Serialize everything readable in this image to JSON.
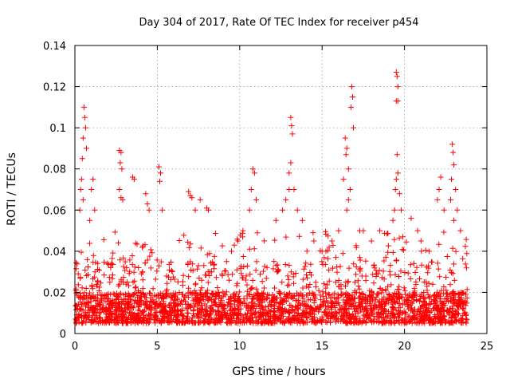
{
  "chart_data": {
    "type": "scatter",
    "title": "Day 304 of 2017, Rate Of TEC Index for receiver p454",
    "xlabel": "GPS time / hours",
    "ylabel": "ROTI / TECUs",
    "xlim": [
      0,
      25
    ],
    "ylim": [
      0,
      0.14
    ],
    "x_ticks": [
      0,
      5,
      10,
      15,
      20,
      25
    ],
    "x_tick_labels": [
      "0",
      "5",
      "10",
      "15",
      "20",
      "25"
    ],
    "y_ticks": [
      0,
      0.02,
      0.04,
      0.06,
      0.08,
      0.1,
      0.12,
      0.14
    ],
    "y_tick_labels": [
      "0",
      "0.02",
      "0.04",
      "0.06",
      "0.08",
      "0.1",
      "0.12",
      "0.14"
    ],
    "grid": true,
    "marker": "+",
    "marker_color": "#ff0000",
    "x_data_range": [
      0,
      23.8
    ],
    "typical_range": [
      0.005,
      0.02
    ],
    "series": [
      {
        "name": "p454",
        "points": [
          [
            0.3,
            0.06
          ],
          [
            0.45,
            0.085
          ],
          [
            0.5,
            0.095
          ],
          [
            0.55,
            0.11
          ],
          [
            0.6,
            0.105
          ],
          [
            0.65,
            0.1
          ],
          [
            0.7,
            0.09
          ],
          [
            0.4,
            0.075
          ],
          [
            0.35,
            0.07
          ],
          [
            0.5,
            0.065
          ],
          [
            1.0,
            0.07
          ],
          [
            1.1,
            0.075
          ],
          [
            1.2,
            0.06
          ],
          [
            0.9,
            0.055
          ],
          [
            2.7,
            0.089
          ],
          [
            2.8,
            0.088
          ],
          [
            2.75,
            0.083
          ],
          [
            2.85,
            0.08
          ],
          [
            2.7,
            0.07
          ],
          [
            2.8,
            0.066
          ],
          [
            2.9,
            0.065
          ],
          [
            3.5,
            0.076
          ],
          [
            3.6,
            0.075
          ],
          [
            4.3,
            0.068
          ],
          [
            4.4,
            0.063
          ],
          [
            4.5,
            0.06
          ],
          [
            5.1,
            0.081
          ],
          [
            5.2,
            0.078
          ],
          [
            5.15,
            0.074
          ],
          [
            5.3,
            0.06
          ],
          [
            6.9,
            0.069
          ],
          [
            7.0,
            0.067
          ],
          [
            7.1,
            0.066
          ],
          [
            7.3,
            0.06
          ],
          [
            7.6,
            0.065
          ],
          [
            8.0,
            0.061
          ],
          [
            8.1,
            0.06
          ],
          [
            9.2,
            0.035
          ],
          [
            9.5,
            0.04
          ],
          [
            9.9,
            0.045
          ],
          [
            10.2,
            0.05
          ],
          [
            10.8,
            0.08
          ],
          [
            10.9,
            0.078
          ],
          [
            10.7,
            0.07
          ],
          [
            11.0,
            0.065
          ],
          [
            10.6,
            0.06
          ],
          [
            12.2,
            0.055
          ],
          [
            12.6,
            0.06
          ],
          [
            12.8,
            0.065
          ],
          [
            13.0,
            0.07
          ],
          [
            13.1,
            0.105
          ],
          [
            13.15,
            0.101
          ],
          [
            13.2,
            0.097
          ],
          [
            13.1,
            0.083
          ],
          [
            13.0,
            0.078
          ],
          [
            13.3,
            0.07
          ],
          [
            13.5,
            0.06
          ],
          [
            13.8,
            0.055
          ],
          [
            14.5,
            0.045
          ],
          [
            15.0,
            0.04
          ],
          [
            15.6,
            0.045
          ],
          [
            16.0,
            0.05
          ],
          [
            16.4,
            0.095
          ],
          [
            16.5,
            0.09
          ],
          [
            16.45,
            0.087
          ],
          [
            16.6,
            0.08
          ],
          [
            16.3,
            0.075
          ],
          [
            16.7,
            0.07
          ],
          [
            16.8,
            0.12
          ],
          [
            16.85,
            0.115
          ],
          [
            16.9,
            0.1
          ],
          [
            16.75,
            0.11
          ],
          [
            16.6,
            0.065
          ],
          [
            16.5,
            0.06
          ],
          [
            17.5,
            0.05
          ],
          [
            18.0,
            0.045
          ],
          [
            18.5,
            0.05
          ],
          [
            19.5,
            0.127
          ],
          [
            19.55,
            0.125
          ],
          [
            19.6,
            0.12
          ],
          [
            19.5,
            0.113
          ],
          [
            19.6,
            0.113
          ],
          [
            19.55,
            0.087
          ],
          [
            19.6,
            0.078
          ],
          [
            19.5,
            0.075
          ],
          [
            19.45,
            0.07
          ],
          [
            19.7,
            0.068
          ],
          [
            19.4,
            0.06
          ],
          [
            19.8,
            0.06
          ],
          [
            19.3,
            0.055
          ],
          [
            20.4,
            0.056
          ],
          [
            20.8,
            0.05
          ],
          [
            21.0,
            0.045
          ],
          [
            21.5,
            0.04
          ],
          [
            22.0,
            0.065
          ],
          [
            22.1,
            0.07
          ],
          [
            22.2,
            0.076
          ],
          [
            22.4,
            0.06
          ],
          [
            22.9,
            0.092
          ],
          [
            22.95,
            0.088
          ],
          [
            23.0,
            0.082
          ],
          [
            22.85,
            0.075
          ],
          [
            23.1,
            0.07
          ],
          [
            22.8,
            0.065
          ],
          [
            23.2,
            0.06
          ],
          [
            23.0,
            0.055
          ],
          [
            23.4,
            0.05
          ]
        ]
      }
    ]
  }
}
